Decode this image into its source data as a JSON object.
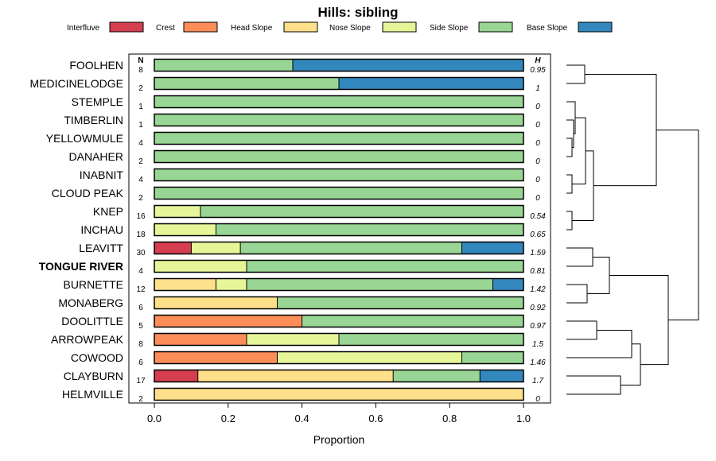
{
  "chart_data": {
    "type": "bar",
    "orientation": "horizontal",
    "stacked": true,
    "title": "Hills: sibling",
    "xlabel": "Proportion",
    "ylabel": "",
    "xlim": [
      0,
      1
    ],
    "xticks": [
      "0.0",
      "0.2",
      "0.4",
      "0.6",
      "0.8",
      "1.0"
    ],
    "n_header": "N",
    "h_header": "H",
    "legend": [
      {
        "name": "Interfluve",
        "color": "#D53E4F"
      },
      {
        "name": "Crest",
        "color": "#FC8D59"
      },
      {
        "name": "Head Slope",
        "color": "#FEE08B"
      },
      {
        "name": "Nose Slope",
        "color": "#E6F598"
      },
      {
        "name": "Side Slope",
        "color": "#99D594"
      },
      {
        "name": "Base Slope",
        "color": "#3288BD"
      }
    ],
    "rows": [
      {
        "label": "FOOLHEN",
        "n": "8",
        "h": "0.95",
        "bold": false,
        "values": [
          0,
          0,
          0,
          0,
          0.375,
          0.625
        ]
      },
      {
        "label": "MEDICINELODGE",
        "n": "2",
        "h": "1",
        "bold": false,
        "values": [
          0,
          0,
          0,
          0,
          0.5,
          0.5
        ]
      },
      {
        "label": "STEMPLE",
        "n": "1",
        "h": "0",
        "bold": false,
        "values": [
          0,
          0,
          0,
          0,
          1,
          0
        ]
      },
      {
        "label": "TIMBERLIN",
        "n": "1",
        "h": "0",
        "bold": false,
        "values": [
          0,
          0,
          0,
          0,
          1,
          0
        ]
      },
      {
        "label": "YELLOWMULE",
        "n": "4",
        "h": "0",
        "bold": false,
        "values": [
          0,
          0,
          0,
          0,
          1,
          0
        ]
      },
      {
        "label": "DANAHER",
        "n": "2",
        "h": "0",
        "bold": false,
        "values": [
          0,
          0,
          0,
          0,
          1,
          0
        ]
      },
      {
        "label": "INABNIT",
        "n": "4",
        "h": "0",
        "bold": false,
        "values": [
          0,
          0,
          0,
          0,
          1,
          0
        ]
      },
      {
        "label": "CLOUD PEAK",
        "n": "2",
        "h": "0",
        "bold": false,
        "values": [
          0,
          0,
          0,
          0,
          1,
          0
        ]
      },
      {
        "label": "KNEP",
        "n": "16",
        "h": "0.54",
        "bold": false,
        "values": [
          0,
          0,
          0,
          0.125,
          0.875,
          0
        ]
      },
      {
        "label": "INCHAU",
        "n": "18",
        "h": "0.65",
        "bold": false,
        "values": [
          0,
          0,
          0,
          0.167,
          0.833,
          0
        ]
      },
      {
        "label": "LEAVITT",
        "n": "30",
        "h": "1.59",
        "bold": false,
        "values": [
          0.1,
          0,
          0,
          0.133,
          0.6,
          0.167
        ]
      },
      {
        "label": "TONGUE RIVER",
        "n": "4",
        "h": "0.81",
        "bold": true,
        "values": [
          0,
          0,
          0,
          0.25,
          0.75,
          0
        ]
      },
      {
        "label": "BURNETTE",
        "n": "12",
        "h": "1.42",
        "bold": false,
        "values": [
          0,
          0,
          0.167,
          0.083,
          0.667,
          0.083
        ]
      },
      {
        "label": "MONABERG",
        "n": "6",
        "h": "0.92",
        "bold": false,
        "values": [
          0,
          0,
          0.333,
          0,
          0.667,
          0
        ]
      },
      {
        "label": "DOOLITTLE",
        "n": "5",
        "h": "0.97",
        "bold": false,
        "values": [
          0,
          0.4,
          0,
          0,
          0.6,
          0
        ]
      },
      {
        "label": "ARROWPEAK",
        "n": "8",
        "h": "1.5",
        "bold": false,
        "values": [
          0,
          0.25,
          0,
          0.25,
          0.5,
          0
        ]
      },
      {
        "label": "COWOOD",
        "n": "6",
        "h": "1.46",
        "bold": false,
        "values": [
          0,
          0.333,
          0,
          0.5,
          0.167,
          0
        ]
      },
      {
        "label": "CLAYBURN",
        "n": "17",
        "h": "1.7",
        "bold": false,
        "values": [
          0.118,
          0,
          0.529,
          0,
          0.235,
          0.118
        ]
      },
      {
        "label": "HELMVILLE",
        "n": "2",
        "h": "0",
        "bold": false,
        "values": [
          0,
          0,
          1,
          0,
          0,
          0
        ]
      }
    ],
    "dendrogram": true
  }
}
